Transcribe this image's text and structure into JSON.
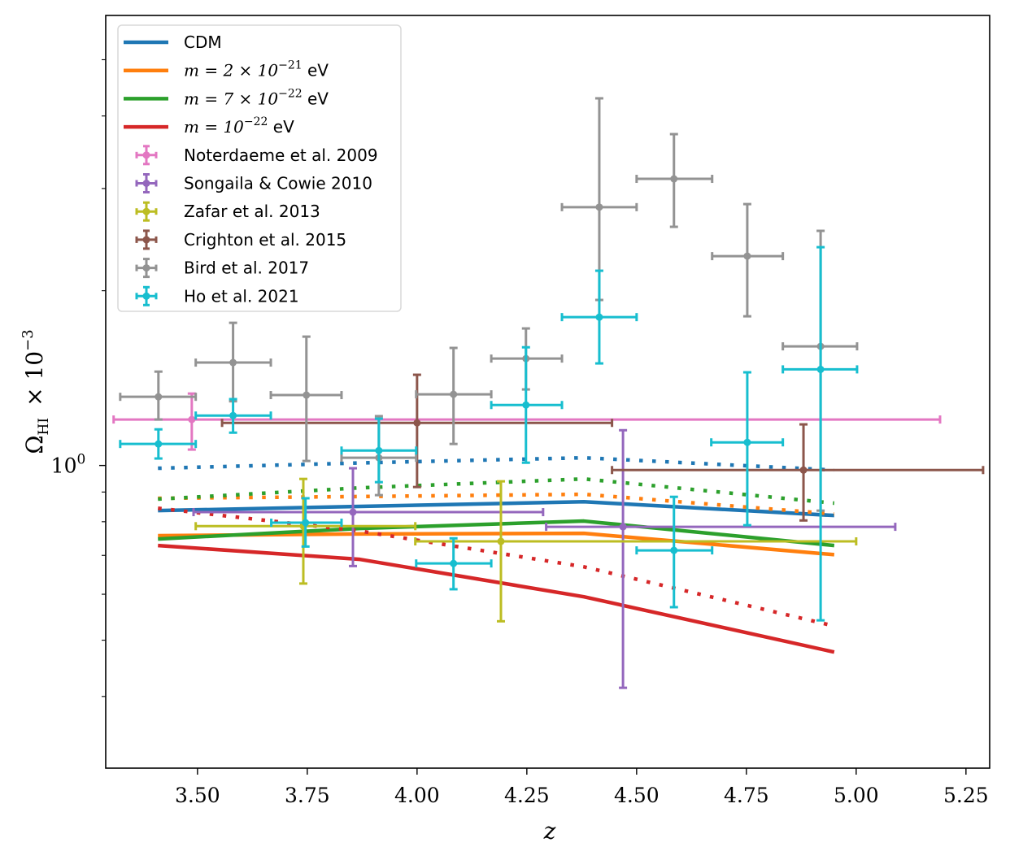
{
  "chart_data": {
    "type": "line",
    "title": "",
    "xlabel": "z",
    "ylabel": "Ω_HI × 10^-3",
    "ylabel_parts": {
      "symbol": "Ω",
      "subscript": "HI",
      "times": "× 10",
      "exponent": "−3"
    },
    "xscale": "linear",
    "yscale": "log",
    "xlim": [
      3.291,
      5.304
    ],
    "ylim": [
      0.301,
      5.96
    ],
    "xticks": [
      3.5,
      3.75,
      4.0,
      4.25,
      4.5,
      4.75,
      5.0,
      5.25
    ],
    "xtick_labels": [
      "3.50",
      "3.75",
      "4.00",
      "4.25",
      "4.50",
      "4.75",
      "5.00",
      "5.25"
    ],
    "yticks_major": [
      1.0
    ],
    "ytick_labels": [
      {
        "base": "10",
        "exp": "0"
      }
    ],
    "yticks_minor": [
      0.4,
      0.5,
      0.6,
      0.7,
      0.8,
      0.9,
      2,
      3,
      4,
      5
    ],
    "grid": false,
    "legend_position": "upper-left",
    "model_series": [
      {
        "name": "CDM",
        "label_plain": "CDM",
        "color": "#1f77b4",
        "solid": {
          "x": [
            3.41,
            3.87,
            4.38,
            4.95
          ],
          "y": [
            0.836,
            0.85,
            0.866,
            0.82
          ]
        },
        "dotted": {
          "x": [
            3.41,
            3.87,
            4.38,
            4.95
          ],
          "y": [
            0.989,
            1.01,
            1.031,
            0.982
          ]
        }
      },
      {
        "name": "m = 2e-21 eV",
        "label_math": "m = 2 × 10",
        "label_exp": "−21",
        "label_unit": " eV",
        "color": "#ff7f0e",
        "solid": {
          "x": [
            3.41,
            3.87,
            4.38,
            4.95
          ],
          "y": [
            0.757,
            0.762,
            0.764,
            0.702
          ]
        },
        "dotted": {
          "x": [
            3.41,
            3.87,
            4.38,
            4.95
          ],
          "y": [
            0.878,
            0.884,
            0.892,
            0.825
          ]
        }
      },
      {
        "name": "m = 7e-22 eV",
        "label_math": "m = 7 × 10",
        "label_exp": "−22",
        "label_unit": " eV",
        "color": "#2ca02c",
        "solid": {
          "x": [
            3.41,
            3.87,
            4.38,
            4.95
          ],
          "y": [
            0.747,
            0.779,
            0.802,
            0.728
          ]
        },
        "dotted": {
          "x": [
            3.41,
            3.87,
            4.38,
            4.95
          ],
          "y": [
            0.875,
            0.915,
            0.948,
            0.861
          ]
        }
      },
      {
        "name": "m = 1e-22 eV",
        "label_math": "m = 10",
        "label_exp": "−22",
        "label_unit": " eV",
        "color": "#d62728",
        "solid": {
          "x": [
            3.41,
            3.87,
            4.38,
            4.95
          ],
          "y": [
            0.728,
            0.689,
            0.594,
            0.477
          ]
        },
        "dotted": {
          "x": [
            3.41,
            3.87,
            4.38,
            4.95
          ],
          "y": [
            0.844,
            0.771,
            0.669,
            0.529
          ]
        }
      }
    ],
    "observations": [
      {
        "name": "Noterdaeme et al. 2009",
        "color": "#e377c2",
        "points": [
          {
            "z": 3.487,
            "y": 1.2,
            "xlo": 3.309,
            "xhi": 5.191,
            "ylo": 1.065,
            "yhi": 1.33
          }
        ]
      },
      {
        "name": "Songaila & Cowie 2010",
        "color": "#9467bd",
        "points": [
          {
            "z": 3.854,
            "y": 0.831,
            "xlo": 3.491,
            "xhi": 4.287,
            "ylo": 0.671,
            "yhi": 0.989
          },
          {
            "z": 4.469,
            "y": 0.784,
            "xlo": 4.294,
            "xhi": 5.089,
            "ylo": 0.414,
            "yhi": 1.15
          }
        ]
      },
      {
        "name": "Zafar et al. 2013",
        "color": "#bcbd22",
        "points": [
          {
            "z": 3.741,
            "y": 0.786,
            "xlo": 3.496,
            "xhi": 3.996,
            "ylo": 0.626,
            "yhi": 0.948
          },
          {
            "z": 4.191,
            "y": 0.74,
            "xlo": 3.996,
            "xhi": 5.0,
            "ylo": 0.539,
            "yhi": 0.939
          }
        ]
      },
      {
        "name": "Crighton et al. 2015",
        "color": "#8c564b",
        "points": [
          {
            "z": 4.0,
            "y": 1.184,
            "xlo": 3.556,
            "xhi": 4.444,
            "ylo": 0.918,
            "yhi": 1.433
          },
          {
            "z": 4.88,
            "y": 0.982,
            "xlo": 4.444,
            "xhi": 5.289,
            "ylo": 0.804,
            "yhi": 1.177
          }
        ]
      },
      {
        "name": "Bird et al. 2017",
        "color": "#939393",
        "points": [
          {
            "z": 3.411,
            "y": 1.313,
            "xlo": 3.324,
            "xhi": 3.496,
            "ylo": 1.2,
            "yhi": 1.451
          },
          {
            "z": 3.581,
            "y": 1.504,
            "xlo": 3.496,
            "xhi": 3.667,
            "ylo": 1.29,
            "yhi": 1.761
          },
          {
            "z": 3.748,
            "y": 1.322,
            "xlo": 3.667,
            "xhi": 3.828,
            "ylo": 1.018,
            "yhi": 1.667
          },
          {
            "z": 3.913,
            "y": 1.031,
            "xlo": 3.828,
            "xhi": 3.998,
            "ylo": 0.889,
            "yhi": 1.216
          },
          {
            "z": 4.083,
            "y": 1.326,
            "xlo": 3.998,
            "xhi": 4.169,
            "ylo": 1.089,
            "yhi": 1.594
          },
          {
            "z": 4.248,
            "y": 1.528,
            "xlo": 4.169,
            "xhi": 4.33,
            "ylo": 1.352,
            "yhi": 1.722
          },
          {
            "z": 4.415,
            "y": 2.786,
            "xlo": 4.33,
            "xhi": 4.5,
            "ylo": 1.928,
            "yhi": 4.29
          },
          {
            "z": 4.585,
            "y": 3.117,
            "xlo": 4.5,
            "xhi": 4.672,
            "ylo": 2.577,
            "yhi": 3.722
          },
          {
            "z": 4.752,
            "y": 2.294,
            "xlo": 4.672,
            "xhi": 4.833,
            "ylo": 1.807,
            "yhi": 2.82
          },
          {
            "z": 4.919,
            "y": 1.604,
            "xlo": 4.833,
            "xhi": 5.002,
            "ylo": 0.836,
            "yhi": 2.536
          }
        ]
      },
      {
        "name": "Ho et al. 2021",
        "color": "#17becf",
        "points": [
          {
            "z": 3.411,
            "y": 1.089,
            "xlo": 3.324,
            "xhi": 3.496,
            "ylo": 1.028,
            "yhi": 1.154
          },
          {
            "z": 3.581,
            "y": 1.219,
            "xlo": 3.496,
            "xhi": 3.667,
            "ylo": 1.139,
            "yhi": 1.301
          },
          {
            "z": 3.746,
            "y": 0.797,
            "xlo": 3.668,
            "xhi": 3.828,
            "ylo": 0.725,
            "yhi": 0.878
          },
          {
            "z": 3.913,
            "y": 1.061,
            "xlo": 3.828,
            "xhi": 3.998,
            "ylo": 0.936,
            "yhi": 1.204
          },
          {
            "z": 4.083,
            "y": 0.678,
            "xlo": 3.998,
            "xhi": 4.169,
            "ylo": 0.612,
            "yhi": 0.749
          },
          {
            "z": 4.248,
            "y": 1.271,
            "xlo": 4.169,
            "xhi": 4.33,
            "ylo": 1.011,
            "yhi": 1.598
          },
          {
            "z": 4.415,
            "y": 1.801,
            "xlo": 4.33,
            "xhi": 4.5,
            "ylo": 1.499,
            "yhi": 2.165
          },
          {
            "z": 4.585,
            "y": 0.714,
            "xlo": 4.5,
            "xhi": 4.672,
            "ylo": 0.57,
            "yhi": 0.883
          },
          {
            "z": 4.752,
            "y": 1.096,
            "xlo": 4.67,
            "xhi": 4.833,
            "ylo": 0.789,
            "yhi": 1.447
          },
          {
            "z": 4.919,
            "y": 1.464,
            "xlo": 4.833,
            "xhi": 5.002,
            "ylo": 0.541,
            "yhi": 2.377
          }
        ]
      }
    ]
  }
}
